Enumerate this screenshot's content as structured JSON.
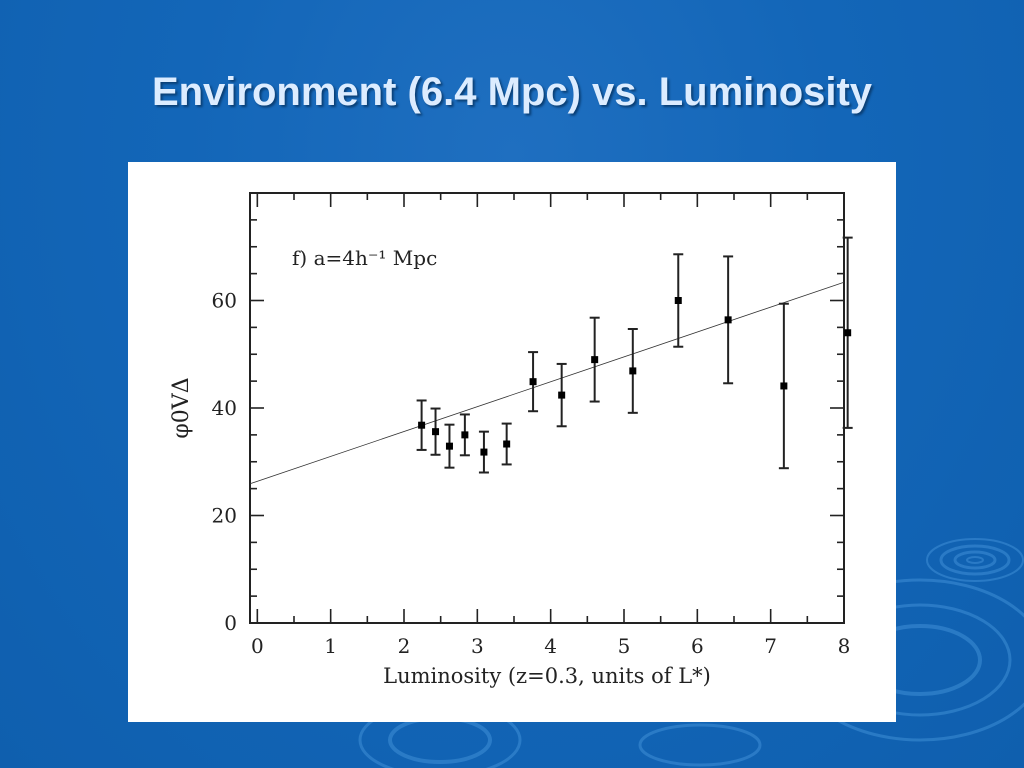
{
  "slide": {
    "title": "Environment (6.4 Mpc) vs. Luminosity"
  },
  "colors": {
    "background": "#1366b8",
    "title_text": "#dcecff",
    "panel": "#ffffff",
    "ink": "#222222"
  },
  "chart_data": {
    "type": "scatter",
    "annotation": "f) a=4h⁻¹ Mpc",
    "xlabel": "Luminosity (z=0.3, units of L*)",
    "ylabel": "φ0VΔ",
    "xlim": [
      -0.1,
      8.0
    ],
    "ylim": [
      0,
      80
    ],
    "x_ticks": [
      0,
      1,
      2,
      3,
      4,
      5,
      6,
      7,
      8
    ],
    "y_ticks": [
      0,
      20,
      40,
      60
    ],
    "grid": false,
    "points": [
      {
        "x": 2.24,
        "y": 36.8,
        "err_low": 4.6,
        "err_high": 4.6
      },
      {
        "x": 2.43,
        "y": 35.6,
        "err_low": 4.3,
        "err_high": 4.3
      },
      {
        "x": 2.62,
        "y": 32.9,
        "err_low": 4.0,
        "err_high": 4.0
      },
      {
        "x": 2.83,
        "y": 35.0,
        "err_low": 3.8,
        "err_high": 3.8
      },
      {
        "x": 3.09,
        "y": 31.8,
        "err_low": 3.8,
        "err_high": 3.8
      },
      {
        "x": 3.4,
        "y": 33.3,
        "err_low": 3.8,
        "err_high": 3.8
      },
      {
        "x": 3.76,
        "y": 44.9,
        "err_low": 5.5,
        "err_high": 5.5
      },
      {
        "x": 4.15,
        "y": 42.4,
        "err_low": 5.8,
        "err_high": 5.8
      },
      {
        "x": 4.6,
        "y": 49.0,
        "err_low": 7.8,
        "err_high": 7.8
      },
      {
        "x": 5.12,
        "y": 46.9,
        "err_low": 7.8,
        "err_high": 7.8
      },
      {
        "x": 5.74,
        "y": 60.0,
        "err_low": 8.6,
        "err_high": 8.6
      },
      {
        "x": 6.42,
        "y": 56.4,
        "err_low": 11.8,
        "err_high": 11.8
      },
      {
        "x": 7.18,
        "y": 44.1,
        "err_low": 15.3,
        "err_high": 15.3
      },
      {
        "x": 8.05,
        "y": 54.0,
        "err_low": 17.7,
        "err_high": 17.7
      }
    ],
    "fit_line": {
      "x": [
        -0.1,
        8.0
      ],
      "y": [
        25.9,
        63.4
      ]
    }
  }
}
